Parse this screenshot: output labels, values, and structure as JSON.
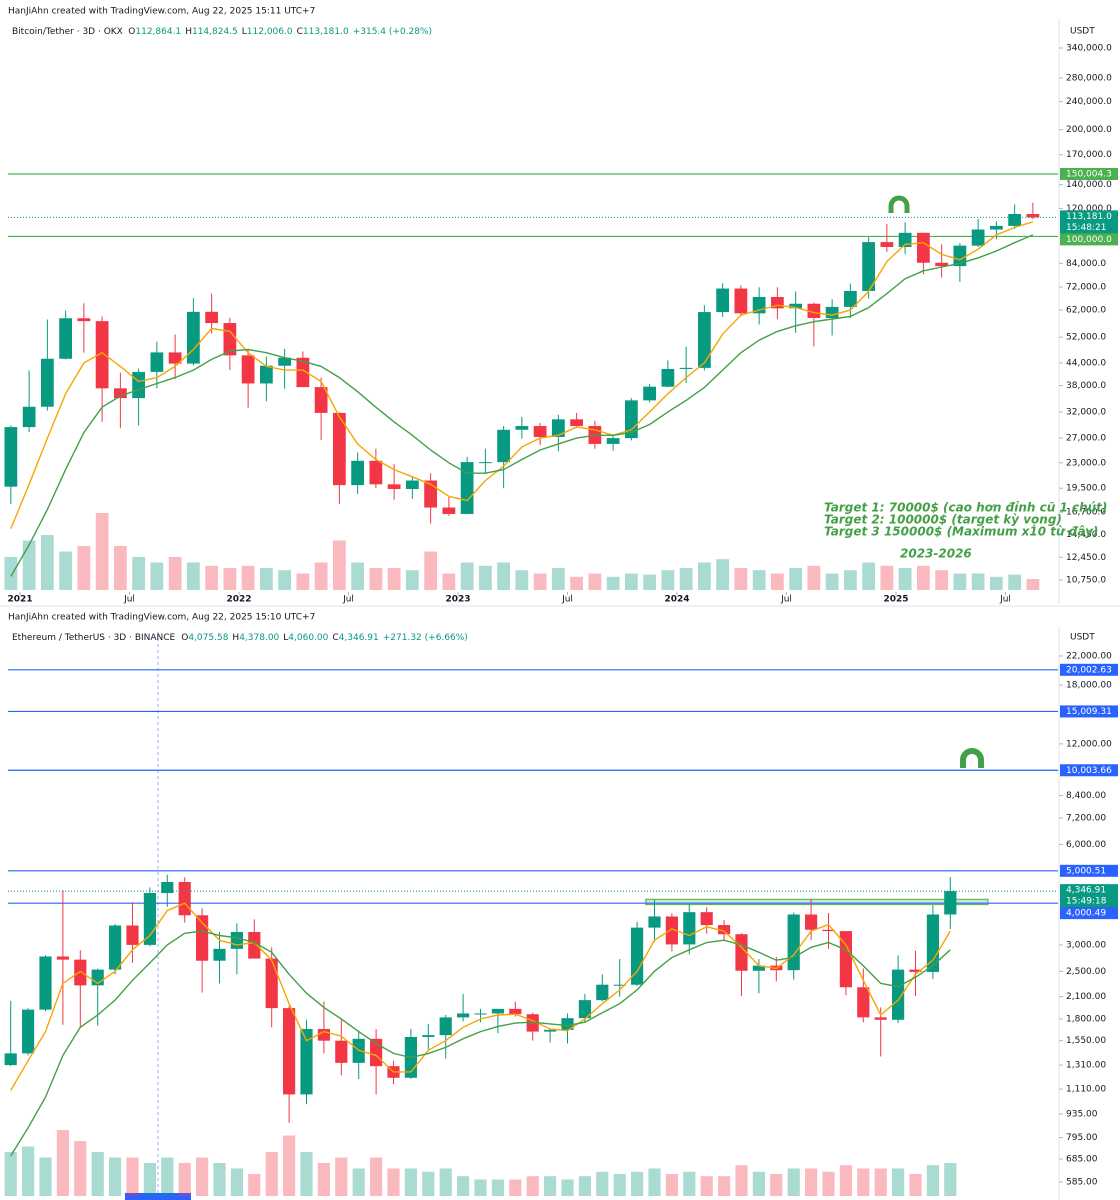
{
  "chart_data": [
    {
      "type": "candlestick",
      "header": "HanJiAhn created with TradingView.com, Aug 22, 2025 15:11 UTC+7",
      "title": "Bitcoin/Tether · 3D · OKX",
      "ohlc_legend": [
        {
          "key": "O",
          "value": "112,864.1"
        },
        {
          "key": "H",
          "value": "114,824.5"
        },
        {
          "key": "L",
          "value": "112,006.0"
        },
        {
          "key": "C",
          "value": "113,181.0"
        }
      ],
      "change": "+315.4 (+0.28%)",
      "currency": "USDT",
      "log_scale": true,
      "grid": false,
      "up_color": "#089981",
      "down_color": "#f23645",
      "ylim": [
        10070,
        358100
      ],
      "yticks": [
        {
          "value": 340000,
          "label": "340,000.0"
        },
        {
          "value": 280000,
          "label": "280,000.0"
        },
        {
          "value": 240000,
          "label": "240,000.0"
        },
        {
          "value": 200000,
          "label": "200,000.0"
        },
        {
          "value": 170000,
          "label": "170,000.0"
        },
        {
          "value": 140000,
          "label": "140,000.0"
        },
        {
          "value": 120000,
          "label": "120,000.0"
        },
        {
          "value": 84000,
          "label": "84,000.0"
        },
        {
          "value": 72000,
          "label": "72,000.0"
        },
        {
          "value": 62000,
          "label": "62,000.0"
        },
        {
          "value": 52000,
          "label": "52,000.0"
        },
        {
          "value": 44000,
          "label": "44,000.0"
        },
        {
          "value": 38000,
          "label": "38,000.0"
        },
        {
          "value": 32000,
          "label": "32,000.0"
        },
        {
          "value": 27000,
          "label": "27,000.0"
        },
        {
          "value": 23000,
          "label": "23,000.0"
        },
        {
          "value": 19500,
          "label": "19,500.0"
        },
        {
          "value": 16700,
          "label": "16,700.0"
        },
        {
          "value": 14450,
          "label": "14,450.0"
        },
        {
          "value": 12450,
          "label": "12,450.0"
        },
        {
          "value": 10750,
          "label": "10,750.0"
        }
      ],
      "xticks": [
        {
          "value": 1,
          "label": "2021"
        },
        {
          "value": 7,
          "label": "Jul"
        },
        {
          "value": 13,
          "label": "2022"
        },
        {
          "value": 19,
          "label": "Jul"
        },
        {
          "value": 25,
          "label": "2023"
        },
        {
          "value": 31,
          "label": "Jul"
        },
        {
          "value": 37,
          "label": "2024"
        },
        {
          "value": 43,
          "label": "Jul"
        },
        {
          "value": 49,
          "label": "2025"
        },
        {
          "value": 55,
          "label": "Jul"
        }
      ],
      "open": [
        19700,
        29000,
        33100,
        45200,
        58800,
        57700,
        37300,
        35000,
        41500,
        47100,
        43800,
        61300,
        57000,
        46200,
        38500,
        43200,
        45500,
        37600,
        31800,
        19900,
        23300,
        20000,
        19400,
        20500,
        17200,
        16500,
        23100,
        23100,
        28500,
        29200,
        27200,
        30500,
        29200,
        26000,
        27000,
        34500,
        37700,
        42300,
        42600,
        61200,
        71300,
        60700,
        67500,
        62700,
        64600,
        58900,
        63300,
        70200,
        96400,
        93400,
        102400,
        84300,
        82500,
        94200,
        104600,
        107100,
        115700
      ],
      "high": [
        29300,
        41900,
        58300,
        61800,
        64800,
        59500,
        41300,
        42400,
        50500,
        52900,
        67000,
        69000,
        59000,
        47900,
        45800,
        48200,
        47400,
        40000,
        31900,
        24600,
        25200,
        22800,
        21000,
        21500,
        18400,
        23900,
        25200,
        29200,
        31000,
        29800,
        31400,
        31800,
        30200,
        27500,
        35000,
        38400,
        44700,
        48900,
        64000,
        73800,
        72800,
        71900,
        71900,
        70000,
        65100,
        66500,
        73600,
        99600,
        108300,
        109600,
        102500,
        95000,
        95700,
        111900,
        110500,
        123200,
        124500
      ],
      "low": [
        17600,
        28100,
        32300,
        45000,
        47000,
        30000,
        28800,
        29300,
        37300,
        39600,
        43300,
        53300,
        42000,
        32900,
        34300,
        37200,
        37600,
        26700,
        17600,
        18800,
        19500,
        18100,
        18200,
        15500,
        16300,
        16500,
        21400,
        19500,
        26900,
        25800,
        24800,
        28900,
        25200,
        24900,
        26600,
        34100,
        37600,
        38600,
        41900,
        59300,
        59600,
        56500,
        58400,
        53500,
        49000,
        52600,
        58900,
        66800,
        90500,
        89200,
        78200,
        76600,
        74500,
        93300,
        98200,
        105100,
        111900
      ],
      "close": [
        29000,
        33100,
        45200,
        58800,
        57700,
        37300,
        35000,
        41500,
        47100,
        43800,
        61300,
        57000,
        46200,
        38500,
        43200,
        45500,
        37600,
        31800,
        19900,
        23300,
        20000,
        19400,
        20500,
        17200,
        16500,
        23100,
        23100,
        28500,
        29200,
        27200,
        30500,
        29200,
        26000,
        27000,
        34500,
        37700,
        42300,
        42600,
        61200,
        71300,
        60700,
        67500,
        62700,
        64600,
        58900,
        63300,
        70200,
        96400,
        93400,
        102400,
        84300,
        82500,
        94200,
        104600,
        107100,
        115700,
        113181
      ],
      "volume": [
        30,
        45,
        50,
        35,
        40,
        70,
        40,
        30,
        25,
        30,
        25,
        22,
        20,
        22,
        20,
        18,
        15,
        25,
        45,
        25,
        20,
        20,
        18,
        35,
        15,
        25,
        22,
        25,
        18,
        15,
        20,
        12,
        15,
        12,
        15,
        14,
        18,
        20,
        25,
        28,
        20,
        18,
        15,
        20,
        22,
        15,
        18,
        25,
        22,
        20,
        22,
        18,
        15,
        15,
        12,
        14,
        10
      ],
      "volume_lim": [
        0,
        100
      ],
      "lines": [
        {
          "color": "#f7a600",
          "values": [
            15000,
            20000,
            27000,
            36000,
            44000,
            47000,
            43000,
            39000,
            40000,
            43000,
            48000,
            55000,
            54000,
            47000,
            43000,
            42000,
            42000,
            39000,
            31000,
            26000,
            23500,
            22000,
            21000,
            20000,
            18500,
            18000,
            20500,
            22500,
            25500,
            27000,
            27500,
            29000,
            28500,
            27500,
            28500,
            32000,
            36000,
            40000,
            44000,
            53000,
            60000,
            62000,
            64000,
            63000,
            61000,
            60000,
            62000,
            70000,
            85000,
            95000,
            96000,
            89000,
            86000,
            92000,
            101000,
            106000,
            110000
          ]
        },
        {
          "color": "#43a047",
          "values": [
            11000,
            13500,
            17000,
            22000,
            28000,
            33000,
            35500,
            37000,
            38500,
            40000,
            42000,
            45000,
            47500,
            48000,
            47000,
            45500,
            44500,
            43000,
            40000,
            36500,
            33000,
            30000,
            27500,
            25000,
            23000,
            21500,
            21500,
            22000,
            23500,
            25000,
            26000,
            27000,
            27500,
            27500,
            28000,
            29500,
            32000,
            34500,
            37500,
            42000,
            47000,
            51000,
            54000,
            56000,
            57500,
            58500,
            59500,
            63000,
            69000,
            76000,
            80000,
            82000,
            84000,
            87000,
            91000,
            96000,
            101000
          ]
        }
      ],
      "levels": [
        {
          "value": 150004.3,
          "label": "150,004.3",
          "color": "#4caf50"
        },
        {
          "value": 100000.0,
          "label": "100,000.0",
          "color": "#4caf50"
        }
      ],
      "last": {
        "value": 113181.0,
        "label": "113,181.0",
        "countdown": "15:48:21"
      },
      "annotations": [
        "Target 1: 70000$ (cao hơn đỉnh cũ 1 chút)",
        "Target 2: 100000$ (target kỳ vọng)",
        "Target 3 150000$ (Maximum x10 từ đây)",
        "2023-2026"
      ]
    },
    {
      "type": "candlestick",
      "header": "HanJiAhn created with TradingView.com, Aug 22, 2025 15:10 UTC+7",
      "title": "Ethereum / TetherUS · 3D · BINANCE",
      "ohlc_legend": [
        {
          "key": "O",
          "value": "4,075.58"
        },
        {
          "key": "H",
          "value": "4,378.00"
        },
        {
          "key": "L",
          "value": "4,060.00"
        },
        {
          "key": "C",
          "value": "4,346.91"
        }
      ],
      "change": "+271.32 (+6.66%)",
      "currency": "USDT",
      "log_scale": true,
      "grid": false,
      "up_color": "#089981",
      "down_color": "#f23645",
      "ylim": [
        531,
        23570
      ],
      "yticks": [
        {
          "value": 22000,
          "label": "22,000.00"
        },
        {
          "value": 18000,
          "label": "18,000.00"
        },
        {
          "value": 12000,
          "label": "12,000.00"
        },
        {
          "value": 8400,
          "label": "8,400.00"
        },
        {
          "value": 7200,
          "label": "7,200.00"
        },
        {
          "value": 6000,
          "label": "6,000.00"
        },
        {
          "value": 3000,
          "label": "3,000.00"
        },
        {
          "value": 2500,
          "label": "2,500.00"
        },
        {
          "value": 2100,
          "label": "2,100.00"
        },
        {
          "value": 1800,
          "label": "1,800.00"
        },
        {
          "value": 1550,
          "label": "1,550.00"
        },
        {
          "value": 1310,
          "label": "1,310.00"
        },
        {
          "value": 1110,
          "label": "1,110.00"
        },
        {
          "value": 935,
          "label": "935.00"
        },
        {
          "value": 795,
          "label": "795.00"
        },
        {
          "value": 685,
          "label": "685.00"
        },
        {
          "value": 585,
          "label": "585.00"
        }
      ],
      "open": [
        1310,
        1420,
        1920,
        2770,
        2710,
        2270,
        2530,
        3430,
        3000,
        4290,
        4630,
        3680,
        2690,
        2920,
        3280,
        2730,
        1940,
        1070,
        1680,
        1550,
        1330,
        1570,
        1300,
        1200,
        1590,
        1610,
        1820,
        1870,
        1870,
        1930,
        1860,
        1650,
        1670,
        1810,
        2050,
        2280,
        2280,
        3380,
        3650,
        3010,
        3760,
        3440,
        3230,
        2510,
        2600,
        2520,
        3700,
        3330,
        3300,
        2240,
        1820,
        1790,
        2530,
        2490,
        3700
      ],
      "high": [
        2040,
        1940,
        2790,
        4380,
        2890,
        2550,
        3470,
        4030,
        4460,
        4870,
        4780,
        3860,
        3280,
        3480,
        3580,
        2950,
        1970,
        1790,
        2030,
        1790,
        1660,
        1680,
        1350,
        1680,
        1740,
        1850,
        2140,
        1930,
        1930,
        2030,
        1880,
        1680,
        1870,
        2140,
        2450,
        2720,
        3520,
        4090,
        3730,
        3980,
        3890,
        3560,
        3250,
        2720,
        2760,
        3750,
        4110,
        3740,
        3300,
        2550,
        1950,
        2790,
        2880,
        3940,
        4790
      ],
      "low": [
        1300,
        1400,
        1900,
        1730,
        1700,
        1720,
        2450,
        2650,
        2970,
        3900,
        3500,
        2160,
        2300,
        2450,
        2780,
        1700,
        880,
        1000,
        1420,
        1220,
        1190,
        1070,
        1150,
        1190,
        1460,
        1370,
        1770,
        1760,
        1630,
        1830,
        1550,
        1530,
        1520,
        1760,
        2030,
        2100,
        2260,
        3060,
        2870,
        2810,
        3240,
        3080,
        2110,
        2150,
        2330,
        2360,
        3100,
        2920,
        2120,
        1760,
        1390,
        1750,
        2110,
        2370,
        3350
      ],
      "close": [
        1420,
        1920,
        2770,
        2710,
        2270,
        2530,
        3430,
        3000,
        4290,
        4630,
        3680,
        2690,
        2920,
        3280,
        2730,
        1940,
        1070,
        1680,
        1550,
        1330,
        1570,
        1300,
        1200,
        1590,
        1610,
        1820,
        1870,
        1870,
        1930,
        1860,
        1650,
        1670,
        1810,
        2050,
        2280,
        2280,
        3380,
        3650,
        3010,
        3760,
        3440,
        3230,
        2510,
        2600,
        2520,
        3700,
        3330,
        3300,
        2240,
        1820,
        1790,
        2530,
        2490,
        3700,
        4346.91
      ],
      "volume": [
        40,
        45,
        35,
        60,
        50,
        40,
        35,
        35,
        30,
        35,
        30,
        35,
        30,
        25,
        20,
        40,
        55,
        40,
        30,
        35,
        25,
        35,
        25,
        25,
        22,
        25,
        18,
        15,
        15,
        15,
        18,
        18,
        15,
        18,
        22,
        20,
        22,
        25,
        20,
        22,
        18,
        18,
        28,
        22,
        20,
        25,
        25,
        22,
        28,
        25,
        25,
        25,
        20,
        28,
        30
      ],
      "volume_lim": [
        0,
        100
      ],
      "lines": [
        {
          "color": "#f7a600",
          "values": [
            1100,
            1350,
            1650,
            2300,
            2500,
            2300,
            2500,
            2900,
            3200,
            3800,
            4000,
            3500,
            3100,
            3000,
            3050,
            2700,
            2000,
            1550,
            1650,
            1600,
            1450,
            1400,
            1250,
            1250,
            1450,
            1550,
            1700,
            1800,
            1850,
            1860,
            1780,
            1680,
            1660,
            1800,
            2000,
            2200,
            2500,
            3100,
            3350,
            3200,
            3400,
            3300,
            2950,
            2600,
            2550,
            2800,
            3300,
            3450,
            3000,
            2350,
            1850,
            2050,
            2450,
            2700,
            3300
          ]
        },
        {
          "color": "#43a047",
          "values": [
            700,
            850,
            1050,
            1400,
            1700,
            1850,
            2050,
            2350,
            2650,
            3000,
            3250,
            3300,
            3200,
            3150,
            3050,
            2850,
            2450,
            2150,
            1950,
            1800,
            1650,
            1520,
            1420,
            1380,
            1420,
            1480,
            1570,
            1650,
            1710,
            1750,
            1760,
            1740,
            1720,
            1760,
            1880,
            2000,
            2200,
            2500,
            2750,
            2900,
            3050,
            3100,
            3000,
            2850,
            2700,
            2750,
            2950,
            3050,
            2900,
            2600,
            2300,
            2250,
            2400,
            2600,
            2900
          ]
        }
      ],
      "levels": [
        {
          "value": 20002.63,
          "label": "20,002.63",
          "color": "#2962ff"
        },
        {
          "value": 15009.31,
          "label": "15,009.31",
          "color": "#2962ff"
        },
        {
          "value": 10003.66,
          "label": "10,003.66",
          "color": "#2962ff"
        },
        {
          "value": 5000.51,
          "label": "5,000.51",
          "color": "#2962ff"
        },
        {
          "value": 4000.49,
          "label": "4,000.49",
          "color": "#2962ff"
        }
      ],
      "last": {
        "value": 4346.91,
        "label": "4,346.91",
        "countdown": "15:49:18"
      },
      "zone": {
        "from": 37,
        "low": 3960,
        "high": 4110
      }
    }
  ]
}
